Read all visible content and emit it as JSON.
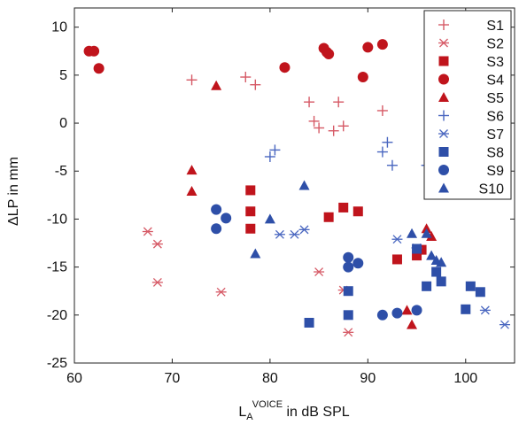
{
  "chart_data": {
    "type": "scatter",
    "title": "",
    "xlabel": {
      "main": "L",
      "sub": "A",
      "sup": "VOICE",
      "rest": " in dB SPL"
    },
    "ylabel": "ΔLP in mm",
    "xlim": [
      60,
      105
    ],
    "ylim": [
      -25,
      12
    ],
    "xticks": [
      60,
      70,
      80,
      90,
      100
    ],
    "yticks": [
      10,
      5,
      0,
      -5,
      -10,
      -15,
      -20,
      -25
    ],
    "grid": false,
    "legend_position": "top-right",
    "colors": {
      "red": "#c0141c",
      "pink": "#d65a66",
      "blue": "#2e4fa8",
      "lightblue": "#4a67c0"
    },
    "series": [
      {
        "name": "S1",
        "marker": "plus",
        "color": "#d65a66",
        "points": [
          [
            72,
            4.5
          ],
          [
            77.5,
            4.8
          ],
          [
            78.5,
            4
          ],
          [
            84,
            2.2
          ],
          [
            84.5,
            0.2
          ],
          [
            85,
            -0.5
          ],
          [
            86.5,
            -0.8
          ],
          [
            87,
            2.2
          ],
          [
            87.5,
            -0.3
          ],
          [
            91.5,
            1.3
          ]
        ]
      },
      {
        "name": "S2",
        "marker": "asterisk",
        "color": "#d65a66",
        "points": [
          [
            67.5,
            -11.3
          ],
          [
            68.5,
            -12.6
          ],
          [
            68.5,
            -16.6
          ],
          [
            75,
            -17.6
          ],
          [
            85,
            -15.5
          ],
          [
            87.5,
            -17.4
          ],
          [
            88,
            -21.8
          ]
        ]
      },
      {
        "name": "S3",
        "marker": "square",
        "color": "#c0141c",
        "points": [
          [
            78,
            -7
          ],
          [
            78,
            -9.2
          ],
          [
            78,
            -11
          ],
          [
            86,
            -9.8
          ],
          [
            87.5,
            -8.8
          ],
          [
            89,
            -9.2
          ],
          [
            93,
            -14.2
          ],
          [
            95,
            -13.8
          ],
          [
            95.5,
            -13.2
          ]
        ]
      },
      {
        "name": "S4",
        "marker": "circle",
        "color": "#c0141c",
        "points": [
          [
            61.5,
            7.5
          ],
          [
            62,
            7.5
          ],
          [
            62.5,
            5.7
          ],
          [
            81.5,
            5.8
          ],
          [
            85.5,
            7.8
          ],
          [
            85.8,
            7.4
          ],
          [
            86,
            7.2
          ],
          [
            89.5,
            4.8
          ],
          [
            90,
            7.9
          ],
          [
            91.5,
            8.2
          ]
        ]
      },
      {
        "name": "S5",
        "marker": "triangle",
        "color": "#c0141c",
        "points": [
          [
            72,
            -4.9
          ],
          [
            72,
            -7.1
          ],
          [
            74.5,
            3.9
          ],
          [
            94,
            -19.5
          ],
          [
            94.5,
            -21
          ],
          [
            96,
            -11
          ],
          [
            96.5,
            -11.8
          ]
        ]
      },
      {
        "name": "S6",
        "marker": "plus",
        "color": "#4a67c0",
        "points": [
          [
            80,
            -3.5
          ],
          [
            80.5,
            -2.8
          ],
          [
            91.5,
            -3
          ],
          [
            92,
            -2
          ],
          [
            92.5,
            -4.4
          ],
          [
            96,
            -4.4
          ],
          [
            97.5,
            -2
          ],
          [
            98,
            -5.8
          ]
        ]
      },
      {
        "name": "S7",
        "marker": "asterisk",
        "color": "#4a67c0",
        "points": [
          [
            81,
            -11.6
          ],
          [
            82.5,
            -11.6
          ],
          [
            83.5,
            -11.1
          ],
          [
            93,
            -12.1
          ],
          [
            95,
            -13
          ],
          [
            102,
            -19.5
          ],
          [
            104,
            -21
          ]
        ]
      },
      {
        "name": "S8",
        "marker": "square",
        "color": "#2e4fa8",
        "points": [
          [
            84,
            -20.8
          ],
          [
            88,
            -17.5
          ],
          [
            88,
            -20
          ],
          [
            95,
            -13.1
          ],
          [
            96,
            -17
          ],
          [
            97,
            -15.5
          ],
          [
            97.5,
            -16.5
          ],
          [
            100,
            -19.4
          ],
          [
            100.5,
            -17
          ],
          [
            101.5,
            -17.6
          ]
        ]
      },
      {
        "name": "S9",
        "marker": "circle",
        "color": "#2e4fa8",
        "points": [
          [
            74.5,
            -9
          ],
          [
            74.5,
            -11
          ],
          [
            75.5,
            -9.9
          ],
          [
            88,
            -14
          ],
          [
            88,
            -15
          ],
          [
            89,
            -14.6
          ],
          [
            91.5,
            -20
          ],
          [
            93,
            -19.8
          ],
          [
            95,
            -19.5
          ]
        ]
      },
      {
        "name": "S10",
        "marker": "triangle",
        "color": "#2e4fa8",
        "points": [
          [
            78.5,
            -13.6
          ],
          [
            80,
            -10
          ],
          [
            83.5,
            -6.5
          ],
          [
            94.5,
            -11.5
          ],
          [
            96,
            -11.5
          ],
          [
            96.5,
            -13.8
          ],
          [
            97,
            -14.3
          ],
          [
            97.5,
            -14.5
          ]
        ]
      }
    ]
  }
}
